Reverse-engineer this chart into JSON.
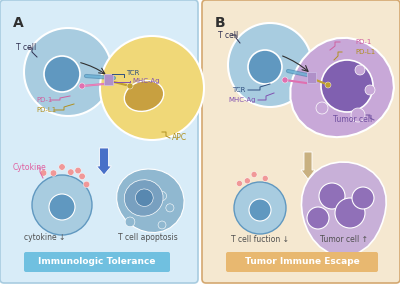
{
  "panel_A_bg": "#d8ecf8",
  "panel_B_bg": "#f5e8d0",
  "panel_A_label": "A",
  "panel_B_label": "B",
  "panel_A_title": "Immunologic Tolerance",
  "panel_B_title": "Tumor Immune Escape",
  "panel_A_title_bg": "#70c0e0",
  "panel_B_title_bg": "#e8b870",
  "tcell_outer": "#a8cce0",
  "tcell_inner": "#6098c0",
  "apc_outer": "#f0d878",
  "apc_inner": "#c8a040",
  "tumor_outer": "#c8a8d8",
  "tumor_inner": "#8060b0",
  "tcr_beam": "#4888b0",
  "mhc_color": "#9060c0",
  "pd1_color": "#e070b0",
  "pdl1_color": "#c0a030",
  "synapse_color": "#b090c8",
  "arrow_blue": "#4870c8",
  "arrow_tan": "#c8b080",
  "cytokine_dot": "#f09898",
  "apop_outer": "#90b8d0",
  "apop_mid": "#78a0c0",
  "apop_inner": "#5888b0",
  "tumor_large_outer": "#c8b0d8",
  "tumor_large_inner": "#9070b8",
  "text_gray": "#505050",
  "text_dark": "#303050",
  "border_A": "#a8cce0",
  "border_B": "#d4a870",
  "label_color": "#303030",
  "pd1_label": "#d060a0",
  "pdl1_label": "#b09020",
  "tcr_label": "#305080",
  "mhc_label": "#8050b0",
  "tumor_label": "#7050a0",
  "apc_label": "#b09020",
  "cytokine_label": "#e060a0"
}
